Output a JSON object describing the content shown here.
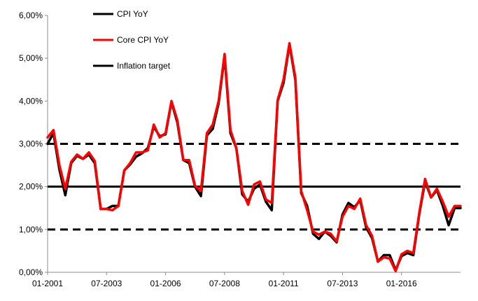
{
  "chart_data": {
    "type": "line",
    "title": "",
    "xlabel": "",
    "ylabel": "",
    "ylim": [
      0,
      6
    ],
    "y_ticks": [
      "0,00%",
      "1,00%",
      "2,00%",
      "3,00%",
      "4,00%",
      "5,00%",
      "6,00%"
    ],
    "x_tick_labels": [
      "01-2001",
      "07-2003",
      "01-2006",
      "07-2008",
      "01-2011",
      "07-2013",
      "01-2016"
    ],
    "x_tick_values": [
      2001.0,
      2003.5,
      2006.0,
      2008.5,
      2011.0,
      2013.5,
      2016.0
    ],
    "xlim": [
      2001.0,
      2018.5
    ],
    "grid": false,
    "legend_position": "top-left",
    "x": [
      2001.0,
      2001.25,
      2001.5,
      2001.75,
      2002.0,
      2002.25,
      2002.5,
      2002.75,
      2003.0,
      2003.25,
      2003.5,
      2003.75,
      2004.0,
      2004.25,
      2004.5,
      2004.75,
      2005.0,
      2005.25,
      2005.5,
      2005.75,
      2006.0,
      2006.25,
      2006.5,
      2006.75,
      2007.0,
      2007.25,
      2007.5,
      2007.75,
      2008.0,
      2008.25,
      2008.5,
      2008.75,
      2009.0,
      2009.25,
      2009.5,
      2009.75,
      2010.0,
      2010.25,
      2010.5,
      2010.75,
      2011.0,
      2011.25,
      2011.5,
      2011.75,
      2012.0,
      2012.25,
      2012.5,
      2012.75,
      2013.0,
      2013.25,
      2013.5,
      2013.75,
      2014.0,
      2014.25,
      2014.5,
      2014.75,
      2015.0,
      2015.25,
      2015.5,
      2015.75,
      2016.0,
      2016.25,
      2016.5,
      2016.75,
      2017.0,
      2017.25,
      2017.5,
      2017.75,
      2018.0,
      2018.25,
      2018.5
    ],
    "series": [
      {
        "name": "CPI YoY",
        "color": "#000000",
        "values": [
          3.0,
          3.25,
          2.4,
          1.8,
          2.55,
          2.72,
          2.65,
          2.75,
          2.55,
          1.48,
          1.48,
          1.55,
          1.55,
          2.38,
          2.52,
          2.7,
          2.78,
          2.9,
          3.4,
          3.18,
          3.22,
          3.98,
          3.5,
          2.62,
          2.55,
          2.0,
          1.78,
          3.2,
          3.35,
          3.95,
          5.05,
          3.25,
          2.9,
          1.82,
          1.65,
          1.95,
          2.05,
          1.65,
          1.45,
          4.0,
          4.42,
          5.32,
          4.5,
          1.85,
          1.55,
          0.9,
          0.78,
          0.95,
          0.85,
          0.7,
          1.35,
          1.62,
          1.52,
          1.68,
          1.05,
          0.8,
          0.25,
          0.4,
          0.4,
          0.05,
          0.38,
          0.45,
          0.4,
          1.35,
          2.12,
          1.75,
          1.92,
          1.55,
          1.1,
          1.5,
          1.5
        ]
      },
      {
        "name": "Core CPI YoY",
        "color": "#ff0000",
        "values": [
          3.15,
          3.32,
          2.5,
          1.95,
          2.58,
          2.75,
          2.65,
          2.8,
          2.6,
          1.48,
          1.48,
          1.45,
          1.55,
          2.38,
          2.55,
          2.8,
          2.8,
          2.85,
          3.45,
          3.15,
          3.25,
          4.0,
          3.55,
          2.62,
          2.62,
          2.02,
          1.9,
          3.25,
          3.45,
          4.0,
          5.1,
          3.32,
          2.9,
          1.9,
          1.58,
          2.05,
          2.12,
          1.7,
          1.62,
          4.02,
          4.5,
          5.35,
          4.55,
          1.9,
          1.45,
          0.95,
          0.88,
          0.95,
          0.9,
          0.72,
          1.3,
          1.55,
          1.48,
          1.72,
          1.1,
          0.85,
          0.25,
          0.35,
          0.32,
          0.03,
          0.42,
          0.5,
          0.45,
          1.38,
          2.18,
          1.75,
          1.95,
          1.65,
          1.3,
          1.55,
          1.55
        ]
      },
      {
        "name": "Inflation target",
        "color": "#000000",
        "target": 2.0,
        "band": [
          1.0,
          3.0
        ]
      }
    ]
  }
}
